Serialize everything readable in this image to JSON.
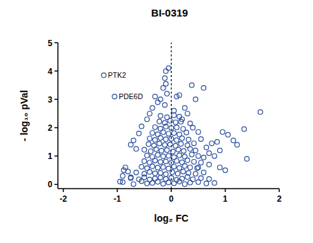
{
  "chart_data": {
    "type": "scatter",
    "title": "BI-0319",
    "x_label": "log₂ FC",
    "y_label": "- log₁₀ pVal",
    "color": "#2c4f9e",
    "marker": "open-circle",
    "xlim": [
      -2.1,
      2
    ],
    "ylim": [
      -0.15,
      5
    ],
    "xticks": [
      -2,
      -1,
      0,
      1,
      2
    ],
    "yticks": [
      0,
      1,
      2,
      3,
      4,
      5
    ],
    "vline": 0,
    "annotations": [
      {
        "text": "PTK2",
        "x": -1.25,
        "y": 3.85
      },
      {
        "text": "PDE6D",
        "x": -1.05,
        "y": 3.1
      }
    ],
    "x": [
      -1.25,
      -1.05,
      1.65,
      1.35,
      1.4,
      1.15,
      1.22,
      1.05,
      0.95,
      0.9,
      0.85,
      0.75,
      0.7,
      0.6,
      0.45,
      0.38,
      0.3,
      0.35,
      0.25,
      0.1,
      0.15,
      -0.05,
      -0.1,
      -0.12,
      -0.1,
      -0.15,
      -0.08,
      -0.3,
      -0.2,
      -0.25,
      -0.35,
      -0.12,
      -0.4,
      -0.45,
      -0.55,
      -0.6,
      -0.7,
      -0.75,
      -0.65,
      -0.85,
      -0.88,
      -0.8,
      -0.9,
      -0.75,
      -0.95,
      0.05,
      0.2,
      0.4,
      0.5,
      0.55,
      0.65,
      0.8,
      0.6,
      0.7,
      0.5,
      0.9,
      1.0,
      -0.9,
      -0.7,
      -0.55,
      -0.45,
      -0.35,
      -0.25,
      -0.15,
      -0.05,
      0.05,
      0.15,
      0.25,
      0.35,
      0.5,
      0.65,
      0.8,
      -0.75,
      -0.6,
      -0.5,
      -0.4,
      -0.3,
      -0.2,
      -0.1,
      0,
      0.1,
      0.2,
      0.3,
      0.4,
      0.55,
      0.7,
      -0.65,
      -0.5,
      -0.4,
      -0.3,
      -0.2,
      -0.1,
      0.02,
      0.12,
      0.22,
      0.32,
      0.45,
      0.6,
      -0.55,
      -0.45,
      -0.35,
      -0.25,
      -0.15,
      -0.05,
      0.05,
      0.15,
      0.25,
      0.35,
      0.48,
      -0.5,
      -0.4,
      -0.3,
      -0.2,
      -0.1,
      0,
      0.1,
      0.2,
      0.3,
      0.42,
      0.55,
      -0.45,
      -0.35,
      -0.25,
      -0.15,
      -0.05,
      0.05,
      0.15,
      0.25,
      0.38,
      0.5,
      -0.5,
      -0.38,
      -0.28,
      -0.18,
      -0.08,
      0.03,
      0.13,
      0.23,
      0.35,
      0.45,
      -0.42,
      -0.32,
      -0.22,
      -0.12,
      -0.02,
      0.08,
      0.18,
      0.3,
      0.42,
      -0.4,
      -0.3,
      -0.2,
      -0.1,
      0.0,
      0.1,
      0.2,
      0.32,
      -0.35,
      -0.25,
      -0.15,
      -0.05,
      0.05,
      0.15,
      0.28,
      -0.3,
      -0.2,
      -0.1,
      0.0,
      0.1,
      0.22,
      -0.22,
      -0.12,
      -0.02,
      0.08,
      0.18,
      -0.2,
      -0.08,
      0.05,
      0.15
    ],
    "values": [
      3.85,
      3.1,
      2.55,
      1.95,
      0.9,
      1.55,
      1.4,
      1.75,
      1.85,
      1.2,
      1.5,
      1.45,
      1.1,
      3.4,
      3.0,
      3.5,
      2.5,
      2.15,
      2.7,
      3.1,
      3.15,
      4.1,
      4.0,
      3.75,
      3.55,
      3.4,
      3.2,
      3.1,
      3.0,
      2.9,
      2.7,
      2.8,
      2.5,
      2.3,
      2.05,
      1.8,
      1.55,
      1.4,
      1.25,
      0.6,
      0.5,
      0.45,
      0.3,
      0.25,
      0.1,
      2.6,
      2.3,
      2.0,
      1.85,
      1.6,
      1.3,
      1.0,
      0.95,
      0.7,
      0.6,
      0.6,
      0.5,
      0.08,
      0.01,
      0.11,
      0.03,
      0.05,
      0.09,
      0.02,
      0.07,
      0.04,
      0.1,
      0.01,
      0.06,
      0.08,
      0.03,
      0.05,
      0.22,
      0.18,
      0.25,
      0.17,
      0.21,
      0.24,
      0.19,
      0.23,
      0.16,
      0.2,
      0.26,
      0.18,
      0.22,
      0.19,
      0.42,
      0.37,
      0.44,
      0.39,
      0.41,
      0.36,
      0.43,
      0.38,
      0.45,
      0.4,
      0.37,
      0.42,
      0.62,
      0.57,
      0.64,
      0.59,
      0.61,
      0.56,
      0.63,
      0.58,
      0.65,
      0.6,
      0.57,
      0.82,
      0.77,
      0.84,
      0.79,
      0.81,
      0.76,
      0.83,
      0.78,
      0.85,
      0.8,
      0.77,
      1.02,
      0.97,
      1.04,
      0.99,
      1.01,
      0.96,
      1.03,
      0.98,
      1.05,
      1.0,
      1.22,
      1.17,
      1.24,
      1.19,
      1.21,
      1.16,
      1.23,
      1.18,
      1.25,
      1.2,
      1.42,
      1.37,
      1.44,
      1.39,
      1.41,
      1.36,
      1.43,
      1.38,
      1.45,
      1.62,
      1.57,
      1.64,
      1.59,
      1.61,
      1.56,
      1.63,
      1.58,
      1.82,
      1.77,
      1.84,
      1.79,
      1.81,
      1.76,
      1.83,
      2.02,
      1.97,
      2.04,
      1.99,
      2.01,
      1.96,
      2.22,
      2.17,
      2.24,
      2.19,
      2.21,
      2.42,
      2.37,
      2.44,
      2.39
    ]
  }
}
